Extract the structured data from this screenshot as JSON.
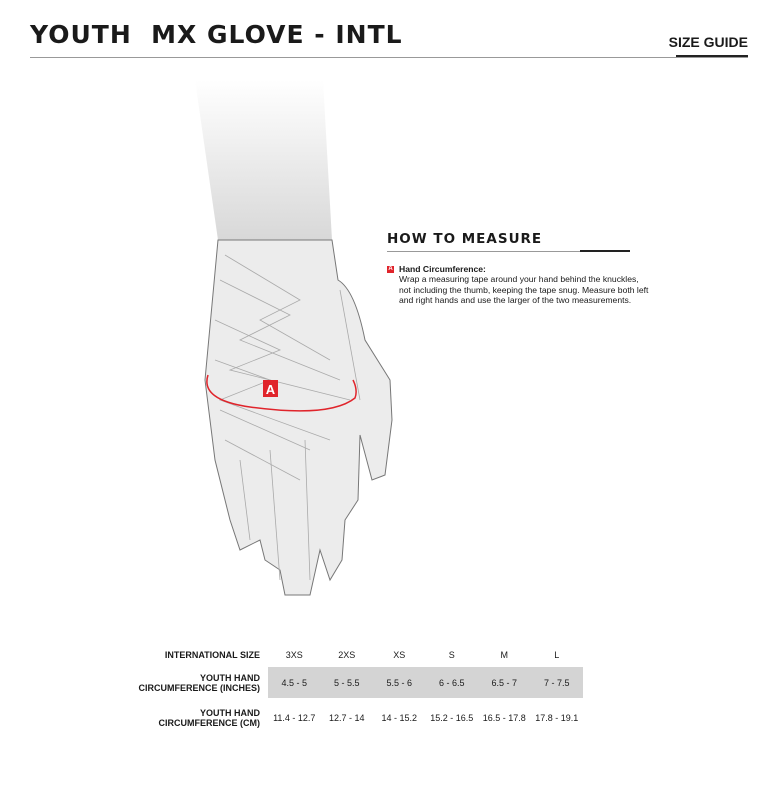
{
  "header": {
    "title": "YOUTH  MX GLOVE - INTL",
    "size_guide": "SIZE GUIDE"
  },
  "measure": {
    "heading": "HOW TO MEASURE",
    "badge": "A",
    "item_title": "Hand Circumference:",
    "item_text": "Wrap a measuring tape around your hand behind the knuckles, not including the thumb, keeping the tape snug. Measure both left and right hands and use the larger of the two measurements."
  },
  "diagram": {
    "marker": "A",
    "accent": "#e0242b"
  },
  "table": {
    "rows": [
      {
        "label": "INTERNATIONAL SIZE",
        "values": [
          "3XS",
          "2XS",
          "XS",
          "S",
          "M",
          "L"
        ]
      },
      {
        "label": "YOUTH HAND CIRCUMFERENCE (INCHES)",
        "values": [
          "4.5 - 5",
          "5 - 5.5",
          "5.5 - 6",
          "6 - 6.5",
          "6.5 - 7",
          "7 - 7.5"
        ]
      },
      {
        "label": "YOUTH HAND CIRCUMFERENCE (CM)",
        "values": [
          "11.4 - 12.7",
          "12.7 - 14",
          "14 - 15.2",
          "15.2 - 16.5",
          "16.5 - 17.8",
          "17.8 - 19.1"
        ]
      }
    ]
  }
}
